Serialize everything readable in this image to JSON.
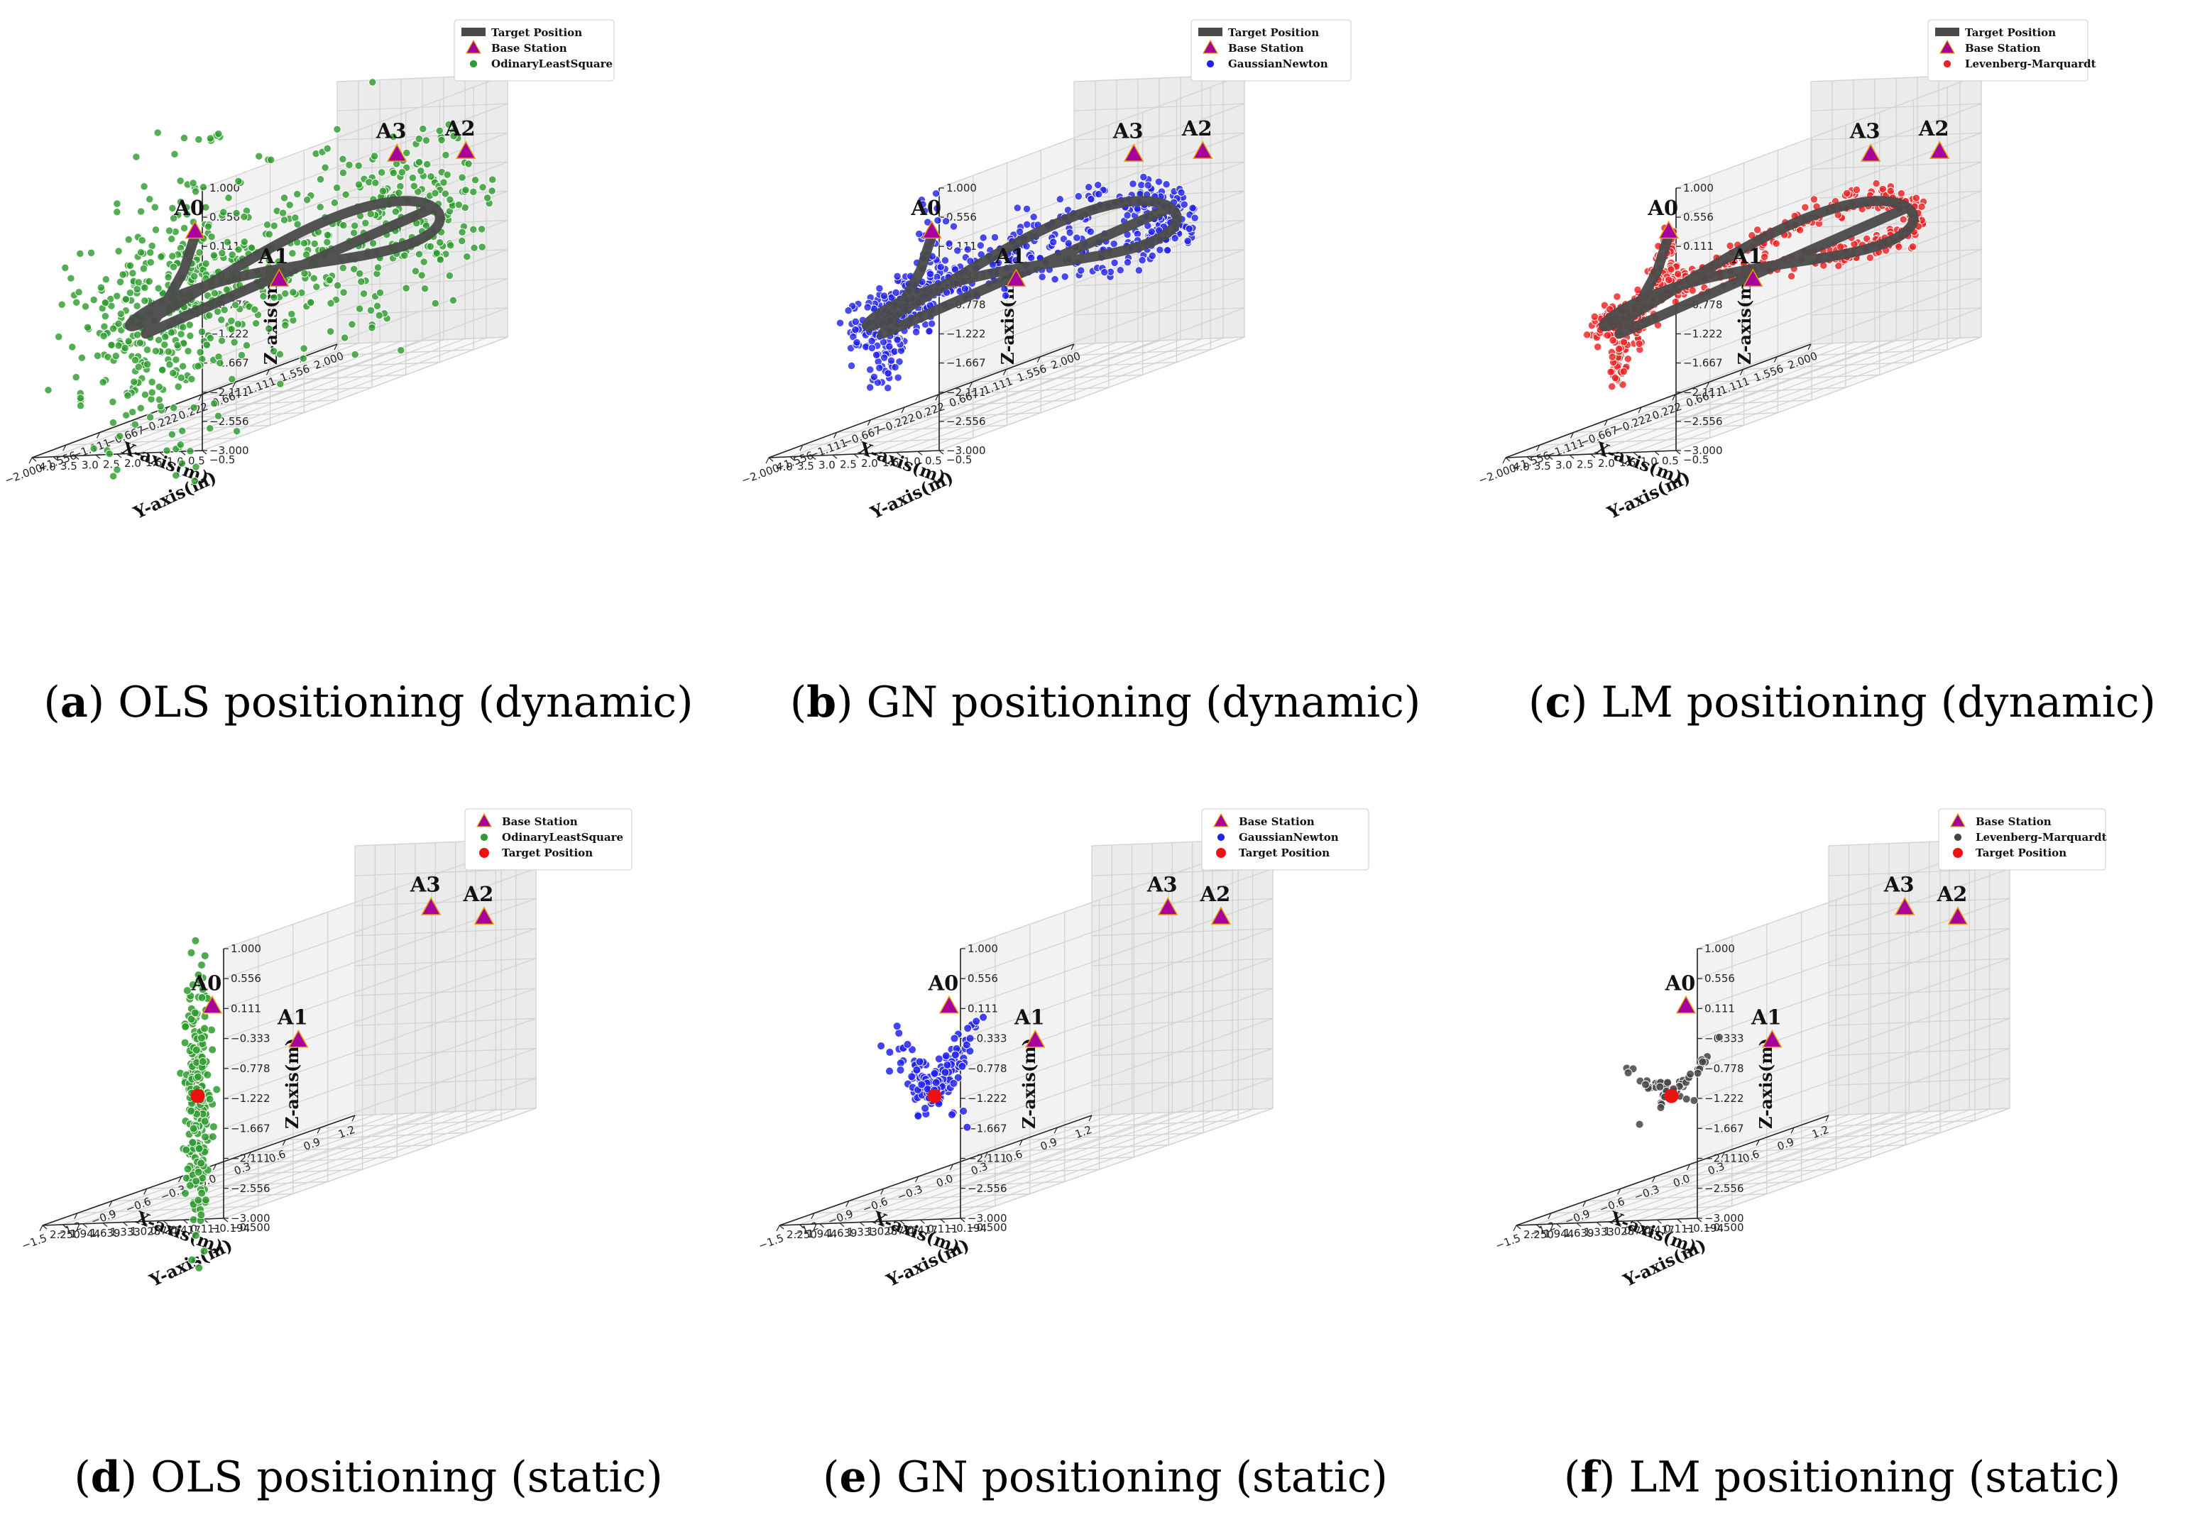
{
  "colors": {
    "ols": "#2e9c2e",
    "gn": "#2222ee",
    "lm": "#ee2222",
    "lm_static": "#444444",
    "target_path": "#4a4a4a",
    "target_point": "#ee1111",
    "base_station": "#a8009c",
    "base_station_edge": "#e8a000"
  },
  "chart_data": [
    {
      "id": "a",
      "type": "scatter3d",
      "mode": "dynamic",
      "caption_letter": "a",
      "caption_text": " OLS positioning (dynamic)",
      "caption_open": "(",
      "caption_close": ")",
      "xlabel": "X-axis(m)",
      "ylabel": "Y-axis(m)",
      "zlabel": "Z-axis(m)",
      "xlim": [
        -2.0,
        2.0
      ],
      "ylim": [
        -0.5,
        4.0
      ],
      "zlim": [
        -3.0,
        1.0
      ],
      "xticks": [
        "2.000",
        "1.556",
        "1.111",
        "0.667",
        "0.222",
        "−0.222",
        "−0.667",
        "−1.111",
        "−1.556",
        "−2.000"
      ],
      "yticks": [
        "4.0",
        "3.5",
        "3.0",
        "2.5",
        "2.0",
        "1.5",
        "1.0",
        "0.5",
        "−0.5"
      ],
      "zticks": [
        "1.000",
        "0.556",
        "0.111",
        "−0.333",
        "−0.778",
        "−1.222",
        "−1.667",
        "−2.111",
        "−2.556",
        "−3.000"
      ],
      "legend": [
        "Target Position",
        "Base Station",
        "OdinaryLeastSquare"
      ],
      "legend_kinds": [
        "path",
        "station",
        "ols"
      ],
      "anchors": [
        {
          "name": "A0",
          "x": -1.6,
          "y": 0.5,
          "z": 0.2
        },
        {
          "name": "A1",
          "x": 0.0,
          "y": 1.5,
          "z": -1.2
        },
        {
          "name": "A2",
          "x": 1.9,
          "y": 0.4,
          "z": -0.1
        },
        {
          "name": "A3",
          "x": 0.6,
          "y": -0.4,
          "z": 0.4
        }
      ],
      "estimate_color": "ols",
      "spread": 0.55,
      "n": 760,
      "seed": 11
    },
    {
      "id": "b",
      "type": "scatter3d",
      "mode": "dynamic",
      "caption_letter": "b",
      "caption_text": " GN positioning (dynamic)",
      "caption_open": "(",
      "caption_close": ")",
      "xlabel": "X-axis(m)",
      "ylabel": "Y-axis(m)",
      "zlabel": "Z-axis(m)",
      "xlim": [
        -2.0,
        2.0
      ],
      "ylim": [
        -0.5,
        4.0
      ],
      "zlim": [
        -3.0,
        1.0
      ],
      "xticks": [
        "2.000",
        "1.556",
        "1.111",
        "0.667",
        "0.222",
        "−0.222",
        "−0.667",
        "−1.111",
        "−1.556",
        "−2.000"
      ],
      "yticks": [
        "4.0",
        "3.5",
        "3.0",
        "2.5",
        "2.0",
        "1.5",
        "1.0",
        "0.5",
        "−0.5"
      ],
      "zticks": [
        "1.000",
        "0.556",
        "0.111",
        "−0.333",
        "−0.778",
        "−1.222",
        "−1.667",
        "−2.111",
        "−2.556",
        "−3.000"
      ],
      "legend": [
        "Target Position",
        "Base Station",
        "GaussianNewton"
      ],
      "legend_kinds": [
        "path",
        "station",
        "gn"
      ],
      "anchors": [
        {
          "name": "A0",
          "x": -1.6,
          "y": 0.5,
          "z": 0.2
        },
        {
          "name": "A1",
          "x": 0.0,
          "y": 1.5,
          "z": -1.2
        },
        {
          "name": "A2",
          "x": 1.9,
          "y": 0.4,
          "z": -0.1
        },
        {
          "name": "A3",
          "x": 0.6,
          "y": -0.4,
          "z": 0.4
        }
      ],
      "estimate_color": "gn",
      "spread": 0.16,
      "n": 640,
      "seed": 23
    },
    {
      "id": "c",
      "type": "scatter3d",
      "mode": "dynamic",
      "caption_letter": "c",
      "caption_text": " LM positioning (dynamic)",
      "caption_open": "(",
      "caption_close": ")",
      "xlabel": "X-axis(m)",
      "ylabel": "Y-axis(m)",
      "zlabel": "Z-axis(m)",
      "xlim": [
        -2.0,
        2.0
      ],
      "ylim": [
        -0.5,
        4.0
      ],
      "zlim": [
        -3.0,
        1.0
      ],
      "xticks": [
        "2.000",
        "1.556",
        "1.111",
        "0.667",
        "0.222",
        "−0.222",
        "−0.667",
        "−1.111",
        "−1.556",
        "−2.000"
      ],
      "yticks": [
        "4.0",
        "3.5",
        "3.0",
        "2.5",
        "2.0",
        "1.5",
        "1.0",
        "0.5",
        "−0.5"
      ],
      "zticks": [
        "1.000",
        "0.556",
        "0.111",
        "−0.333",
        "−0.778",
        "−1.222",
        "−1.667",
        "−2.111",
        "−2.556",
        "−3.000"
      ],
      "legend": [
        "Target Position",
        "Base Station",
        "Levenberg-Marquardt"
      ],
      "legend_kinds": [
        "path",
        "station",
        "lm"
      ],
      "anchors": [
        {
          "name": "A0",
          "x": -1.6,
          "y": 0.5,
          "z": 0.2
        },
        {
          "name": "A1",
          "x": 0.0,
          "y": 1.5,
          "z": -1.2
        },
        {
          "name": "A2",
          "x": 1.9,
          "y": 0.4,
          "z": -0.1
        },
        {
          "name": "A3",
          "x": 0.6,
          "y": -0.4,
          "z": 0.4
        }
      ],
      "estimate_color": "lm",
      "spread": 0.08,
      "n": 660,
      "seed": 37
    },
    {
      "id": "d",
      "type": "scatter3d",
      "mode": "static",
      "caption_letter": "d",
      "caption_text": " OLS positioning (static)",
      "caption_open": "(",
      "caption_close": ")",
      "xlabel": "X-axis(m)",
      "ylabel": "Y-axis(m)",
      "zlabel": "Z-axis(m)",
      "xlim": [
        -1.5,
        1.2
      ],
      "ylim": [
        -0.5,
        2.25
      ],
      "zlim": [
        -3.0,
        1.0
      ],
      "xticks": [
        "1.2",
        "0.9",
        "0.6",
        "0.3",
        "0.0",
        "−0.3",
        "−0.6",
        "−0.9",
        "−1.2",
        "−1.5"
      ],
      "yticks": [
        "2.250",
        "1.944",
        "1.639",
        "1.333",
        "1.028",
        "0.722",
        "0.417",
        "0.111",
        "−0.194",
        "−0.500"
      ],
      "zticks": [
        "1.000",
        "0.556",
        "0.111",
        "−0.333",
        "−0.778",
        "−1.222",
        "−1.667",
        "−2.111",
        "−2.556",
        "−3.000"
      ],
      "legend": [
        "Base Station",
        "OdinaryLeastSquare",
        "Target Position"
      ],
      "legend_kinds": [
        "station",
        "ols",
        "target"
      ],
      "anchors": [
        {
          "name": "A0",
          "x": -1.2,
          "y": 0.2,
          "z": 0.0
        },
        {
          "name": "A1",
          "x": 0.0,
          "y": 1.0,
          "z": -1.2
        },
        {
          "name": "A2",
          "x": 1.15,
          "y": 0.2,
          "z": -0.1
        },
        {
          "name": "A3",
          "x": 0.35,
          "y": -0.4,
          "z": 0.5
        }
      ],
      "target": {
        "x": -0.7,
        "y": 1.3,
        "z": -1.6
      },
      "estimate_color": "ols",
      "spread_z": 1.0,
      "spread_xy": 0.05,
      "n": 230,
      "seed": 41
    },
    {
      "id": "e",
      "type": "scatter3d",
      "mode": "static",
      "caption_letter": "e",
      "caption_text": " GN positioning (static)",
      "caption_open": "(",
      "caption_close": ")",
      "xlabel": "X-axis(m)",
      "ylabel": "Y-axis(m)",
      "zlabel": "Z-axis(m)",
      "xlim": [
        -1.5,
        1.2
      ],
      "ylim": [
        -0.5,
        2.25
      ],
      "zlim": [
        -3.0,
        1.0
      ],
      "xticks": [
        "1.2",
        "0.9",
        "0.6",
        "0.3",
        "0.0",
        "−0.3",
        "−0.6",
        "−0.9",
        "−1.2",
        "−1.5"
      ],
      "yticks": [
        "2.250",
        "1.944",
        "1.639",
        "1.333",
        "1.028",
        "0.722",
        "0.417",
        "0.111",
        "−0.194",
        "−0.500"
      ],
      "zticks": [
        "1.000",
        "0.556",
        "0.111",
        "−0.333",
        "−0.778",
        "−1.222",
        "−1.667",
        "−2.111",
        "−2.556",
        "−3.000"
      ],
      "legend": [
        "Base Station",
        "GaussianNewton",
        "Target Position"
      ],
      "legend_kinds": [
        "station",
        "gn",
        "target"
      ],
      "anchors": [
        {
          "name": "A0",
          "x": -1.2,
          "y": 0.2,
          "z": 0.0
        },
        {
          "name": "A1",
          "x": 0.0,
          "y": 1.0,
          "z": -1.2
        },
        {
          "name": "A2",
          "x": 1.15,
          "y": 0.2,
          "z": -0.1
        },
        {
          "name": "A3",
          "x": 0.35,
          "y": -0.4,
          "z": 0.5
        }
      ],
      "target": {
        "x": -0.7,
        "y": 1.3,
        "z": -1.6
      },
      "estimate_color": "gn",
      "spread_z": 0.45,
      "spread_xy": 0.06,
      "tilt": true,
      "n": 180,
      "seed": 53
    },
    {
      "id": "f",
      "type": "scatter3d",
      "mode": "static",
      "caption_letter": "f",
      "caption_text": " LM positioning (static)",
      "caption_open": "(",
      "caption_close": ")",
      "xlabel": "X-axis(m)",
      "ylabel": "Y-axis(m)",
      "zlabel": "Z-axis(m)",
      "xlim": [
        -1.5,
        1.2
      ],
      "ylim": [
        -0.5,
        2.25
      ],
      "zlim": [
        -3.0,
        1.0
      ],
      "xticks": [
        "1.2",
        "0.9",
        "0.6",
        "0.3",
        "0.0",
        "−0.3",
        "−0.6",
        "−0.9",
        "−1.2",
        "−1.5"
      ],
      "yticks": [
        "2.250",
        "1.944",
        "1.639",
        "1.333",
        "1.028",
        "0.722",
        "0.417",
        "0.111",
        "−0.194",
        "−0.500"
      ],
      "zticks": [
        "1.000",
        "0.556",
        "0.111",
        "−0.333",
        "−0.778",
        "−1.222",
        "−1.667",
        "−2.111",
        "−2.556",
        "−3.000"
      ],
      "legend": [
        "Base Station",
        "Levenberg-Marquardt",
        "Target Position"
      ],
      "legend_kinds": [
        "station",
        "lm_static",
        "target"
      ],
      "anchors": [
        {
          "name": "A0",
          "x": -1.2,
          "y": 0.2,
          "z": 0.0
        },
        {
          "name": "A1",
          "x": 0.0,
          "y": 1.0,
          "z": -1.2
        },
        {
          "name": "A2",
          "x": 1.15,
          "y": 0.2,
          "z": -0.1
        },
        {
          "name": "A3",
          "x": 0.35,
          "y": -0.4,
          "z": 0.5
        }
      ],
      "target": {
        "x": -0.7,
        "y": 1.3,
        "z": -1.6
      },
      "estimate_color": "lm_static",
      "spread_z": 0.25,
      "spread_xy": 0.04,
      "tilt": true,
      "n": 60,
      "seed": 67
    }
  ]
}
